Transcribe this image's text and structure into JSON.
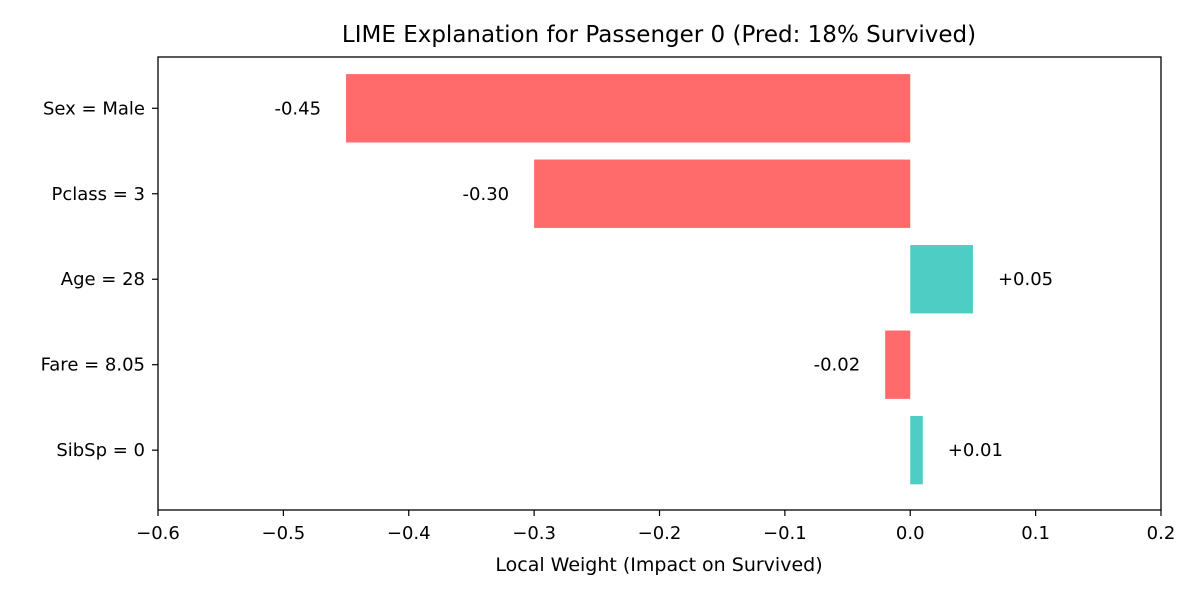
{
  "chart_data": {
    "type": "bar",
    "orientation": "horizontal",
    "title": "LIME Explanation for Passenger 0 (Pred: 18% Survived)",
    "xlabel": "Local Weight (Impact on Survived)",
    "ylabel": "",
    "xlim": [
      -0.6,
      0.2
    ],
    "xticks": [
      -0.6,
      -0.5,
      -0.4,
      -0.3,
      -0.2,
      -0.1,
      0.0,
      0.1,
      0.2
    ],
    "xtick_labels": [
      "−0.6",
      "−0.5",
      "−0.4",
      "−0.3",
      "−0.2",
      "−0.1",
      "0.0",
      "0.1",
      "0.2"
    ],
    "categories": [
      "Sex = Male",
      "Pclass = 3",
      "Age = 28",
      "Fare = 8.05",
      "SibSp = 0"
    ],
    "values": [
      -0.45,
      -0.3,
      0.05,
      -0.02,
      0.01
    ],
    "value_labels": [
      "-0.45",
      "-0.30",
      "+0.05",
      "-0.02",
      "+0.01"
    ],
    "colors": {
      "negative": "#ff6b6b",
      "positive": "#4ecdc4"
    },
    "grid": false,
    "legend": "none"
  }
}
